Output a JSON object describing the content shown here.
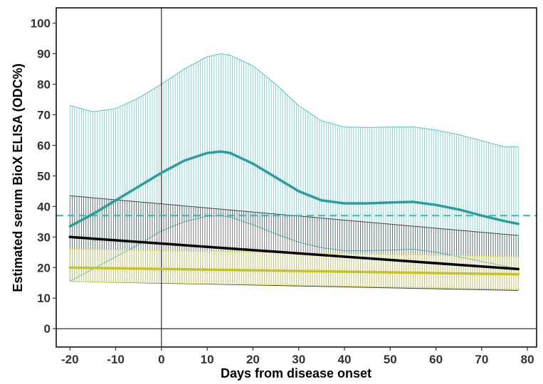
{
  "chart_data": {
    "type": "line",
    "title": "",
    "xlabel": "Days from disease onset",
    "ylabel": "Estimated serum BioX ELISA (ODC%)",
    "xlim": [
      -23,
      82
    ],
    "ylim": [
      -6,
      105
    ],
    "x_ticks": [
      "-20",
      "-10",
      "0",
      "10",
      "20",
      "30",
      "40",
      "50",
      "60",
      "70",
      "80"
    ],
    "y_ticks": [
      "0",
      "10",
      "20",
      "30",
      "40",
      "50",
      "60",
      "70",
      "80",
      "90",
      "100"
    ],
    "grid": false,
    "legend": "none",
    "reference_lines": {
      "vertical_x": 0,
      "horizontal_y": 0,
      "cutoff_y": 37,
      "cutoff_style": "dashed",
      "cutoff_color": "#2BBCC0"
    },
    "series": [
      {
        "color": "#2A9D9F",
        "band_color": "#5BC3C5",
        "x": [
          -20,
          -15,
          -10,
          -5,
          0,
          5,
          10,
          13,
          15,
          20,
          25,
          30,
          35,
          40,
          45,
          50,
          55,
          60,
          65,
          70,
          75,
          78
        ],
        "y": [
          33.5,
          37.5,
          42,
          46.5,
          51,
          55,
          57.5,
          58,
          57.5,
          54,
          49.5,
          45,
          42,
          41,
          41,
          41.3,
          41.5,
          40.5,
          39,
          37,
          35.2,
          34.3
        ],
        "lower": [
          15.5,
          19.5,
          23.5,
          27.5,
          32,
          35,
          36.8,
          37,
          36.5,
          34,
          31,
          28.3,
          26.5,
          25.5,
          25.5,
          25.7,
          26,
          25,
          23.5,
          22,
          20.5,
          19.5
        ],
        "upper": [
          73,
          71,
          72,
          75.5,
          80,
          85,
          89,
          90,
          89.5,
          86,
          80,
          73,
          68,
          66,
          65.8,
          66,
          66,
          65,
          63.5,
          61.5,
          59.5,
          59.5
        ]
      },
      {
        "color": "#000000",
        "band_color": "#444444",
        "x": [
          -20,
          78
        ],
        "y": [
          30,
          19.5
        ],
        "lower": [
          15.5,
          12.5
        ],
        "upper": [
          43.5,
          30.5
        ]
      },
      {
        "color": "#C4C424",
        "band_color": "#E3E36A",
        "x": [
          -20,
          78
        ],
        "y": [
          20,
          17.8
        ],
        "lower": [
          15.5,
          13
        ],
        "upper": [
          26,
          23.5
        ]
      }
    ]
  }
}
